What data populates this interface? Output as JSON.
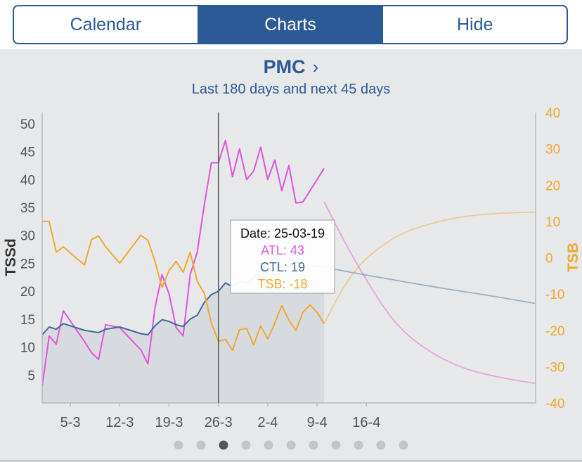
{
  "segments": [
    {
      "label": "Calendar",
      "active": false
    },
    {
      "label": "Charts",
      "active": true
    },
    {
      "label": "Hide",
      "active": false
    }
  ],
  "header": {
    "title": "PMC",
    "chevron": "chevron-right-icon"
  },
  "colors": {
    "accent": "#2c5a96",
    "atl": "#e055d8",
    "ctl": "#3f6a96",
    "tsb": "#f0a830",
    "fill": "#d3d8de"
  },
  "chart_data": {
    "type": "line",
    "title": "PMC",
    "subtitle": "Last 180 days and next 45 days",
    "ylabel_left": "TSSd",
    "ylabel_right": "TSB",
    "x_ticks": [
      "5-3",
      "12-3",
      "19-3",
      "26-3",
      "2-4",
      "9-4",
      "16-4"
    ],
    "ylim_left": [
      0,
      52
    ],
    "yticks_left": [
      5,
      10,
      15,
      20,
      25,
      30,
      35,
      40,
      45,
      50
    ],
    "ylim_right": [
      -40,
      40
    ],
    "yticks_right": [
      -40,
      -30,
      -20,
      -10,
      0,
      10,
      20,
      30,
      40
    ],
    "cursor_day": 25,
    "series": [
      {
        "name": "ATL",
        "axis": "left",
        "x": [
          0,
          1,
          2,
          3,
          6,
          7,
          8,
          9,
          11,
          14,
          15,
          16,
          17,
          18,
          19,
          20,
          21,
          22,
          23,
          24,
          25,
          26,
          27,
          28,
          29,
          30,
          31,
          32,
          33,
          34,
          35,
          36,
          37,
          38,
          39,
          40
        ],
        "y": [
          3,
          12,
          10.5,
          16.5,
          11,
          9,
          7.8,
          14,
          13.5,
          9.5,
          7,
          17,
          23,
          19.5,
          13.5,
          12,
          23,
          27,
          35.5,
          43,
          43,
          47,
          40.5,
          45.5,
          40,
          41.5,
          45.8,
          40,
          43.5,
          38,
          42.5,
          35.8,
          36,
          38,
          40,
          42
        ],
        "forecast_x": [
          40,
          42,
          45,
          50,
          55,
          60,
          65,
          70
        ],
        "forecast_y": [
          36,
          31,
          24,
          14,
          9,
          6,
          4.5,
          3.5
        ]
      },
      {
        "name": "CTL",
        "axis": "left",
        "x": [
          0,
          1,
          2,
          3,
          6,
          7,
          8,
          9,
          11,
          14,
          15,
          16,
          17,
          18,
          19,
          20,
          21,
          22,
          23,
          24,
          25,
          26,
          27,
          28,
          29,
          30,
          31,
          32,
          33,
          34,
          35,
          36,
          37,
          38,
          39,
          40
        ],
        "y": [
          12.2,
          13.6,
          13.2,
          14.2,
          13,
          12.8,
          12.6,
          13.2,
          13.6,
          12.4,
          12.2,
          13.8,
          14.9,
          14.6,
          14,
          13.7,
          15,
          15.7,
          18,
          19.4,
          20,
          21.5,
          20.8,
          21.8,
          21.5,
          22.4,
          23.6,
          23.2,
          23.9,
          23.6,
          24.6,
          24,
          24.2,
          24.4,
          24.6,
          24.3
        ],
        "forecast_x": [
          40,
          45,
          50,
          55,
          60,
          65,
          70
        ],
        "forecast_y": [
          24.3,
          23.1,
          22,
          20.9,
          19.9,
          18.9,
          17.8
        ]
      },
      {
        "name": "TSB",
        "axis": "right",
        "x": [
          0,
          1,
          2,
          3,
          6,
          7,
          8,
          9,
          11,
          14,
          15,
          16,
          17,
          18,
          19,
          20,
          21,
          22,
          23,
          24,
          25,
          26,
          27,
          28,
          29,
          30,
          31,
          32,
          33,
          34,
          35,
          36,
          37,
          38,
          39,
          40
        ],
        "y": [
          10,
          10,
          1.5,
          3,
          -2,
          5,
          6,
          3,
          -1.5,
          6.2,
          4.8,
          -1,
          -8.2,
          -3.5,
          -1,
          -4,
          1.5,
          -6.5,
          -9.8,
          -18,
          -23,
          -22.5,
          -25.5,
          -19.8,
          -19.5,
          -24,
          -18.8,
          -22.4,
          -18,
          -13.2,
          -17.2,
          -20,
          -15,
          -13,
          -15,
          -18.2
        ],
        "forecast_x": [
          40,
          42,
          45,
          50,
          55,
          60,
          65,
          70
        ],
        "forecast_y": [
          -18.2,
          -10.5,
          -1.5,
          6,
          9.5,
          11.5,
          12.3,
          12.6
        ]
      }
    ],
    "tooltip": {
      "date": "Date: 25-03-19",
      "atl": "ATL: 43",
      "ctl": "CTL: 19",
      "tsb": "TSB: -18"
    },
    "grid": false
  },
  "pager": {
    "count": 11,
    "active_index": 2
  }
}
